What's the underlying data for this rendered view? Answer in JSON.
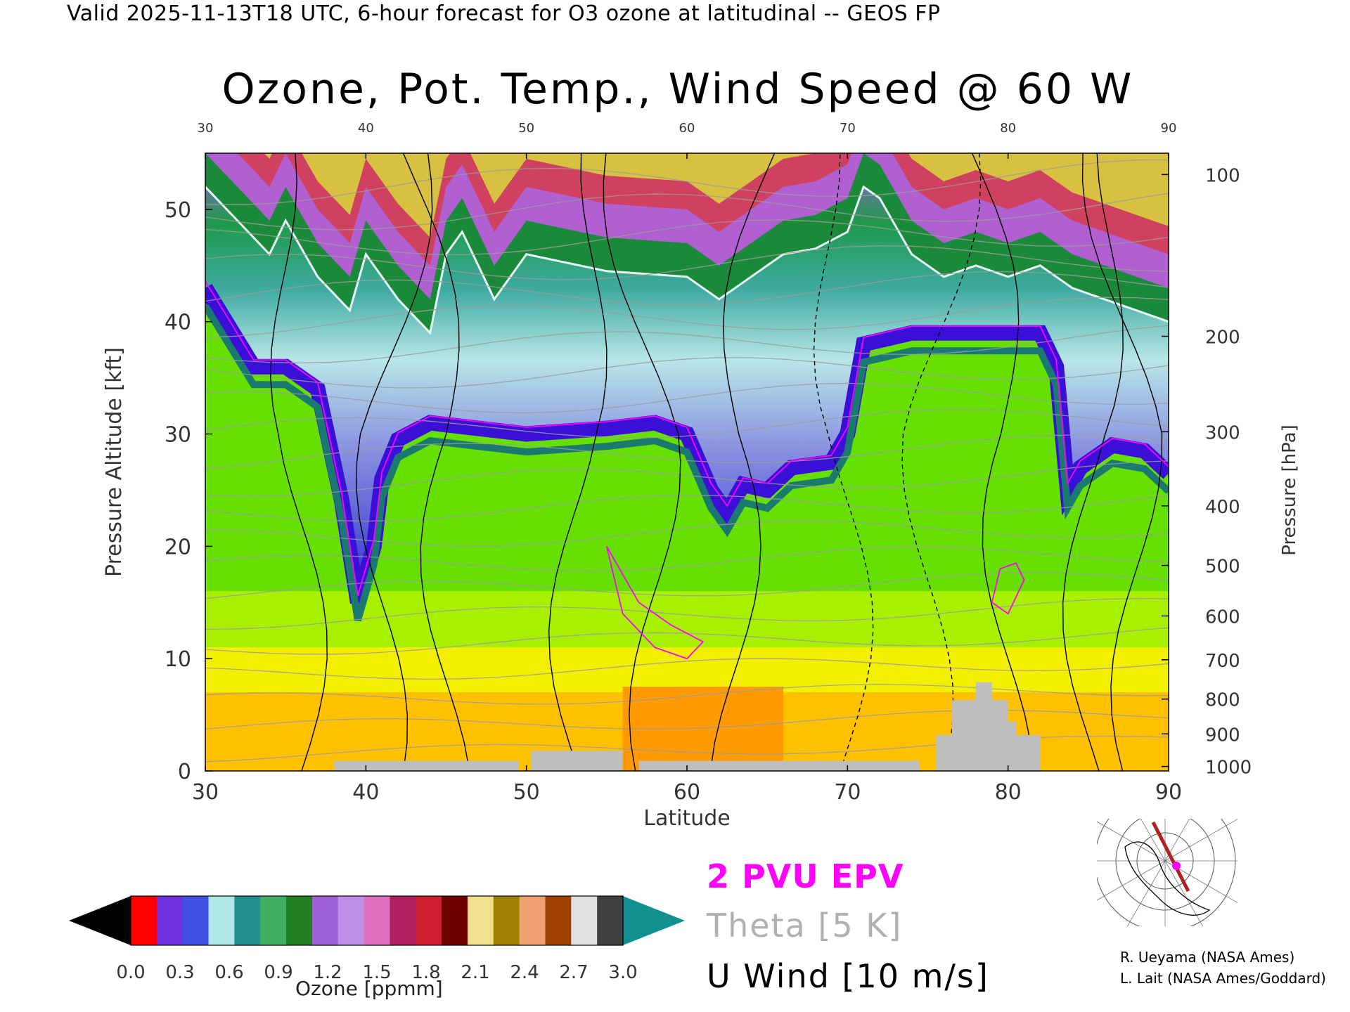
{
  "header": {
    "valid_line": "Valid 2025-11-13T18 UTC, 6-hour forecast for O3 ozone at latitudinal -- GEOS FP",
    "title": "Ozone, Pot. Temp., Wind Speed @ 60 W"
  },
  "chart_data": {
    "type": "heatmap",
    "title": "Ozone, Pot. Temp., Wind Speed @ 60 W",
    "xlabel": "Latitude",
    "ylabel": "Pressure Altitude [kft]",
    "y2label": "Pressure [hPa]",
    "xlim": [
      30,
      90
    ],
    "ylim": [
      0,
      55
    ],
    "x_ticks": [
      30,
      40,
      50,
      60,
      70,
      80,
      90
    ],
    "x_ticks_top": [
      30,
      40,
      50,
      60,
      70,
      80,
      90
    ],
    "y_ticks": [
      0,
      10,
      20,
      30,
      40,
      50
    ],
    "pressure_ticks": [
      {
        "p": "100",
        "kft": 53.1
      },
      {
        "p": "200",
        "kft": 38.7
      },
      {
        "p": "300",
        "kft": 30.2
      },
      {
        "p": "400",
        "kft": 23.6
      },
      {
        "p": "500",
        "kft": 18.3
      },
      {
        "p": "600",
        "kft": 13.8
      },
      {
        "p": "700",
        "kft": 9.9
      },
      {
        "p": "800",
        "kft": 6.4
      },
      {
        "p": "900",
        "kft": 3.3
      },
      {
        "p": "1000",
        "kft": 0.4
      }
    ],
    "tropopause_kft": [
      [
        30,
        43
      ],
      [
        33,
        36
      ],
      [
        35,
        36
      ],
      [
        37,
        34
      ],
      [
        38.5,
        24
      ],
      [
        39.5,
        15
      ],
      [
        40.5,
        20
      ],
      [
        41,
        26
      ],
      [
        42,
        29.5
      ],
      [
        44,
        31
      ],
      [
        47,
        30.5
      ],
      [
        50,
        30
      ],
      [
        55,
        30.5
      ],
      [
        58,
        31
      ],
      [
        60,
        30
      ],
      [
        61.5,
        25
      ],
      [
        62.5,
        23
      ],
      [
        63.5,
        25.5
      ],
      [
        65,
        25
      ],
      [
        66.5,
        27
      ],
      [
        69,
        27.5
      ],
      [
        70,
        30
      ],
      [
        71,
        38
      ],
      [
        74,
        39
      ],
      [
        78,
        39
      ],
      [
        82,
        39
      ],
      [
        83,
        36
      ],
      [
        83.7,
        25
      ],
      [
        84.5,
        27
      ],
      [
        86.5,
        29
      ],
      [
        88.5,
        28.5
      ],
      [
        90,
        26.5
      ]
    ],
    "upper_boundary_kft": [
      [
        30,
        52
      ],
      [
        32,
        49
      ],
      [
        34,
        46
      ],
      [
        35,
        49
      ],
      [
        37,
        44
      ],
      [
        39,
        41
      ],
      [
        40,
        46
      ],
      [
        42,
        42
      ],
      [
        44,
        39
      ],
      [
        45,
        46
      ],
      [
        46,
        48
      ],
      [
        47,
        45
      ],
      [
        48,
        42
      ],
      [
        50,
        46
      ],
      [
        55,
        44.5
      ],
      [
        60,
        44
      ],
      [
        62,
        42
      ],
      [
        64,
        44
      ],
      [
        66,
        46
      ],
      [
        68,
        46.5
      ],
      [
        70,
        48
      ],
      [
        71,
        52
      ],
      [
        72,
        51
      ],
      [
        74,
        46
      ],
      [
        76,
        44
      ],
      [
        78,
        45
      ],
      [
        80,
        44
      ],
      [
        82,
        45
      ],
      [
        84,
        43
      ],
      [
        86,
        42
      ],
      [
        88,
        41
      ],
      [
        90,
        40
      ]
    ],
    "surface_kft": [
      [
        30,
        0
      ],
      [
        38,
        0
      ],
      [
        38,
        0.9
      ],
      [
        49.5,
        0.9
      ],
      [
        49.5,
        0
      ],
      [
        50.3,
        0
      ],
      [
        50.3,
        1.8
      ],
      [
        56,
        1.8
      ],
      [
        56,
        0
      ],
      [
        57,
        0
      ],
      [
        57,
        0.9
      ],
      [
        74.5,
        0.9
      ],
      [
        74.5,
        0
      ],
      [
        75.5,
        0
      ],
      [
        75.5,
        3.2
      ],
      [
        76.5,
        3.2
      ],
      [
        76.5,
        6.3
      ],
      [
        78,
        6.3
      ],
      [
        78,
        7.9
      ],
      [
        79,
        7.9
      ],
      [
        79,
        6.3
      ],
      [
        80,
        6.3
      ],
      [
        80,
        4.4
      ],
      [
        80.5,
        4.4
      ],
      [
        80.5,
        3.2
      ],
      [
        82,
        3.2
      ],
      [
        82,
        0
      ],
      [
        90,
        0
      ]
    ],
    "colorbar": {
      "label": "Ozone [ppmm]",
      "ticks": [
        "0.0",
        "0.3",
        "0.6",
        "0.9",
        "1.2",
        "1.5",
        "1.8",
        "2.1",
        "2.4",
        "2.7",
        "3.0"
      ],
      "range": [
        0.0,
        3.0
      ]
    },
    "legend": {
      "placement": "bottom-center",
      "items": [
        {
          "label": "2 PVU EPV",
          "color": "#ff00ff"
        },
        {
          "label": "Theta [5 K]",
          "color": "#b0b0b0"
        },
        {
          "label": "U Wind [10 m/s]",
          "color": "#000000"
        }
      ]
    }
  },
  "credits": [
    "R. Ueyama (NASA Ames)",
    "L. Lait (NASA Ames/Goddard)"
  ],
  "colors": {
    "epv": "#ff00ff",
    "theta": "#b0b0b0",
    "wind": "#000000",
    "surface": "#bebebe"
  }
}
